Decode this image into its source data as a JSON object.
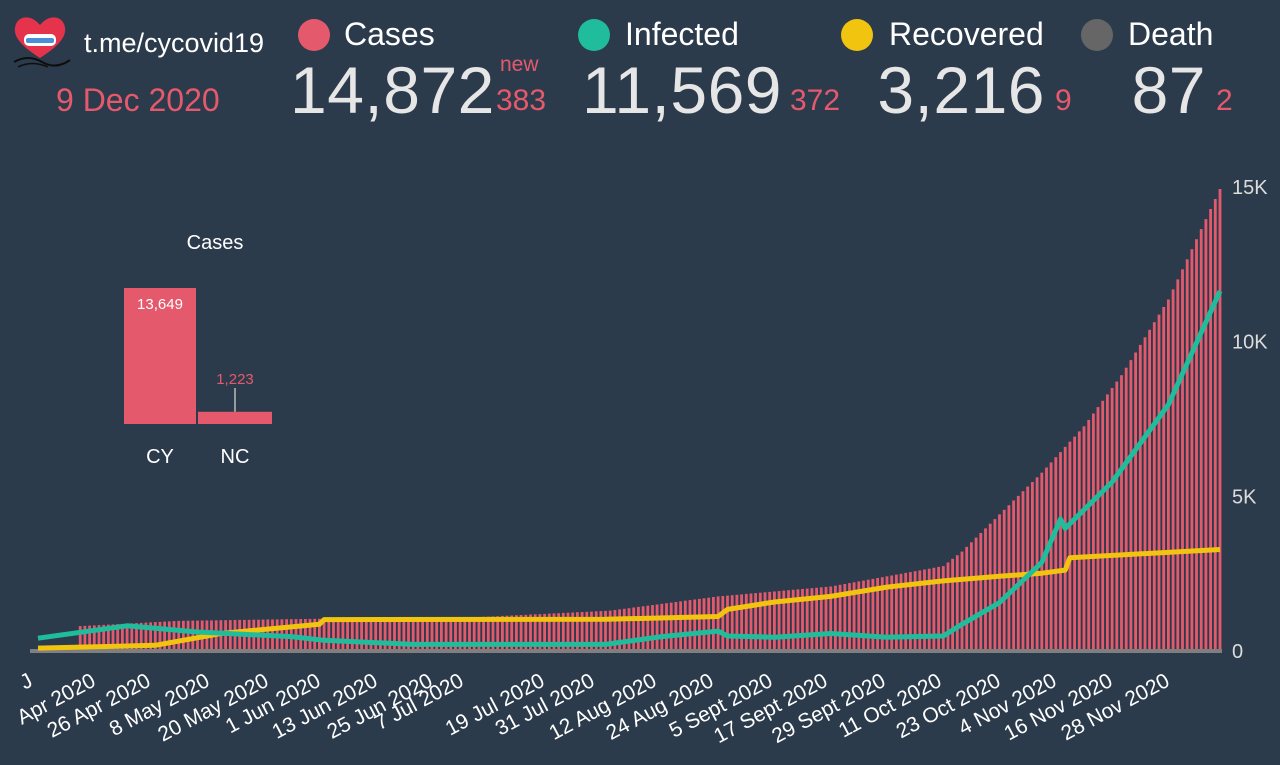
{
  "header": {
    "handle": "t.me/cycovid19",
    "date": "9 Dec 2020",
    "new_label": "new"
  },
  "stats": {
    "cases": {
      "label": "Cases",
      "value": "14,872",
      "delta": "383",
      "color": "#e5596d"
    },
    "infected": {
      "label": "Infected",
      "value": "11,569",
      "delta": "372",
      "color": "#1fbd9c"
    },
    "recovered": {
      "label": "Recovered",
      "value": "3,216",
      "delta": "9",
      "color": "#f1c40f"
    },
    "death": {
      "label": "Death",
      "value": "87",
      "delta": "2",
      "color": "#666666"
    }
  },
  "chart_data": [
    {
      "type": "bar+line",
      "title": "",
      "x_tick_labels": [
        "J",
        "Apr 2020",
        "26 Apr 2020",
        "8 May 2020",
        "20 May 2020",
        "1 Jun 2020",
        "13 Jun 2020",
        "25 Jun 2020",
        "7 Jul 2020",
        "19 Jul 2020",
        "31 Jul 2020",
        "12 Aug 2020",
        "24 Aug 2020",
        "5 Sept 2020",
        "17 Sept 2020",
        "29 Sept 2020",
        "11 Oct 2020",
        "23 Oct 2020",
        "4 Nov 2020",
        "16 Nov 2020",
        "28 Nov 2020"
      ],
      "y_tick_labels": [
        "0",
        "5K",
        "10K",
        "15K"
      ],
      "ylim": [
        0,
        15000
      ],
      "y_axis_side": "right",
      "series": [
        {
          "name": "Cases",
          "type": "bar",
          "x": [
            "2020-04-10",
            "2020-05-01",
            "2020-06-01",
            "2020-07-01",
            "2020-08-01",
            "2020-08-24",
            "2020-09-05",
            "2020-09-17",
            "2020-09-29",
            "2020-10-11",
            "2020-10-15",
            "2020-10-23",
            "2020-11-01",
            "2020-11-10",
            "2020-11-18",
            "2020-11-28",
            "2020-12-09"
          ],
          "values": [
            740,
            910,
            980,
            1010,
            1240,
            1700,
            1860,
            2020,
            2350,
            2680,
            3150,
            4350,
            5700,
            7200,
            8850,
            11300,
            14872
          ]
        },
        {
          "name": "Infected",
          "type": "line",
          "x": [
            "2020-04-01",
            "2020-04-20",
            "2020-05-05",
            "2020-05-25",
            "2020-06-01",
            "2020-06-20",
            "2020-07-31",
            "2020-08-12",
            "2020-08-24",
            "2020-08-26",
            "2020-09-05",
            "2020-09-17",
            "2020-09-29",
            "2020-10-11",
            "2020-10-15",
            "2020-10-23",
            "2020-11-01",
            "2020-11-05",
            "2020-11-06",
            "2020-11-16",
            "2020-11-28",
            "2020-12-09"
          ],
          "values": [
            350,
            750,
            550,
            400,
            280,
            150,
            150,
            400,
            580,
            420,
            380,
            500,
            380,
            420,
            800,
            1500,
            2800,
            4200,
            3900,
            5400,
            7900,
            11569
          ]
        },
        {
          "name": "Recovered",
          "type": "line",
          "x": [
            "2020-04-01",
            "2020-04-26",
            "2020-05-10",
            "2020-05-31",
            "2020-06-01",
            "2020-07-31",
            "2020-08-24",
            "2020-08-26",
            "2020-09-05",
            "2020-09-17",
            "2020-09-29",
            "2020-10-11",
            "2020-10-23",
            "2020-11-01",
            "2020-11-06",
            "2020-11-07",
            "2020-12-09"
          ],
          "values": [
            30,
            120,
            500,
            800,
            950,
            960,
            1050,
            1280,
            1520,
            1700,
            2000,
            2200,
            2350,
            2450,
            2550,
            2950,
            3216
          ]
        }
      ]
    },
    {
      "type": "bar",
      "title": "Cases",
      "categories": [
        "CY",
        "NC"
      ],
      "values": [
        13649,
        1223
      ],
      "value_labels": [
        "13,649",
        "1,223"
      ],
      "colors": [
        "#e5596d",
        "#e5596d"
      ]
    }
  ]
}
